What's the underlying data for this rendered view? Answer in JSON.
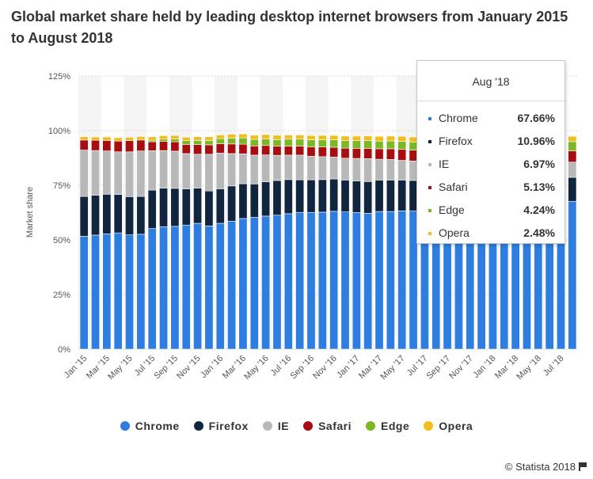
{
  "title": "Global market share held by leading desktop internet browsers from January 2015 to August 2018",
  "credit": "© Statista 2018",
  "tooltip": {
    "header": "Aug '18",
    "rows": [
      {
        "label": "Chrome",
        "value": "67.66%",
        "color": "#2e7de0"
      },
      {
        "label": "Firefox",
        "value": "10.96%",
        "color": "#12253f"
      },
      {
        "label": "IE",
        "value": "6.97%",
        "color": "#b8b8b8"
      },
      {
        "label": "Safari",
        "value": "5.13%",
        "color": "#a80e11"
      },
      {
        "label": "Edge",
        "value": "4.24%",
        "color": "#7cb825"
      },
      {
        "label": "Opera",
        "value": "2.48%",
        "color": "#f0be1e"
      }
    ]
  },
  "chart_data": {
    "type": "bar",
    "stacked": true,
    "title": "Global market share held by leading desktop internet browsers from January 2015 to August 2018",
    "ylabel": "Market share",
    "ylim": [
      0,
      125
    ],
    "yticks": [
      "0%",
      "25%",
      "50%",
      "75%",
      "100%",
      "125%"
    ],
    "ytick_values": [
      0,
      25,
      50,
      75,
      100,
      125
    ],
    "grid": true,
    "legend_position": "bottom",
    "categories": [
      "Jan '15",
      "Feb '15",
      "Mar '15",
      "Apr '15",
      "May '15",
      "Jun '15",
      "Jul '15",
      "Aug '15",
      "Sep '15",
      "Oct '15",
      "Nov '15",
      "Dec '15",
      "Jan '16",
      "Feb '16",
      "Mar '16",
      "Apr '16",
      "May '16",
      "Jun '16",
      "Jul '16",
      "Aug '16",
      "Sep '16",
      "Oct '16",
      "Nov '16",
      "Dec '16",
      "Jan '17",
      "Feb '17",
      "Mar '17",
      "Apr '17",
      "May '17",
      "Jun '17",
      "Jul '17",
      "Aug '17",
      "Sep '17",
      "Oct '17",
      "Nov '17",
      "Dec '17",
      "Jan '18",
      "Feb '18",
      "Mar '18",
      "Apr '18",
      "May '18",
      "Jun '18",
      "Jul '18",
      "Aug '18"
    ],
    "xtick_labels": [
      "Jan '15",
      "Mar '15",
      "May '15",
      "Jul '15",
      "Sep '15",
      "Nov '15",
      "Jan '16",
      "Mar '16",
      "May '16",
      "Jul '16",
      "Sep '16",
      "Nov '16",
      "Jan '17",
      "Mar '17",
      "May '17",
      "Jul '17",
      "Sep '17",
      "Nov '17",
      "Jan '18",
      "Mar '18",
      "May '18",
      "Jul '18"
    ],
    "series": [
      {
        "name": "Chrome",
        "color": "#2e7de0",
        "values": [
          51.7,
          52.2,
          52.8,
          53.2,
          52.3,
          52.6,
          55.2,
          56.0,
          56.2,
          56.8,
          57.6,
          56.4,
          57.6,
          58.6,
          59.8,
          60.3,
          60.9,
          61.3,
          62.0,
          62.6,
          62.6,
          62.7,
          63.1,
          62.8,
          62.5,
          62.2,
          63.0,
          63.0,
          63.3,
          63.2,
          63.0,
          63.2,
          63.4,
          64.0,
          64.3,
          64.6,
          65.0,
          65.3,
          65.8,
          66.3,
          66.6,
          67.0,
          67.3,
          67.66
        ]
      },
      {
        "name": "Firefox",
        "color": "#12253f",
        "values": [
          18.2,
          18.2,
          18.1,
          17.6,
          17.5,
          17.3,
          17.6,
          17.7,
          17.4,
          16.5,
          16.1,
          16.0,
          15.8,
          16.1,
          15.9,
          15.3,
          15.7,
          15.9,
          15.6,
          14.9,
          14.9,
          14.9,
          14.8,
          14.6,
          14.5,
          14.5,
          14.4,
          14.4,
          14.1,
          14.0,
          13.5,
          13.0,
          12.5,
          12.4,
          12.1,
          11.9,
          11.7,
          11.6,
          11.4,
          11.3,
          11.2,
          11.1,
          11.0,
          10.96
        ]
      },
      {
        "name": "IE",
        "color": "#b8b8b8",
        "values": [
          21.2,
          20.5,
          19.8,
          19.5,
          20.5,
          20.8,
          18.0,
          17.2,
          17.0,
          16.2,
          15.5,
          16.8,
          16.3,
          14.8,
          13.7,
          13.2,
          12.3,
          11.5,
          11.2,
          11.3,
          10.8,
          10.5,
          10.0,
          10.0,
          10.3,
          10.5,
          9.5,
          9.4,
          9.0,
          8.9,
          8.7,
          8.6,
          8.4,
          8.2,
          8.0,
          7.9,
          7.8,
          7.6,
          7.4,
          7.3,
          7.2,
          7.1,
          7.0,
          6.97
        ]
      },
      {
        "name": "Safari",
        "color": "#a80e11",
        "values": [
          4.6,
          4.7,
          4.8,
          4.9,
          5.1,
          5.0,
          4.1,
          4.2,
          4.3,
          4.2,
          4.4,
          4.3,
          4.3,
          4.4,
          4.4,
          4.2,
          4.3,
          4.2,
          4.1,
          4.1,
          4.2,
          4.4,
          4.5,
          4.6,
          4.6,
          4.7,
          4.8,
          4.9,
          5.0,
          5.0,
          5.0,
          5.1,
          5.2,
          5.1,
          5.2,
          5.2,
          5.1,
          5.1,
          5.2,
          5.1,
          5.2,
          5.1,
          5.1,
          5.13
        ]
      },
      {
        "name": "Edge",
        "color": "#7cb825",
        "values": [
          0,
          0,
          0,
          0,
          0,
          0,
          0.7,
          1.0,
          1.3,
          1.7,
          1.9,
          2.0,
          2.3,
          2.7,
          2.9,
          3.0,
          3.0,
          3.0,
          3.2,
          3.2,
          3.3,
          3.3,
          3.4,
          3.4,
          3.5,
          3.5,
          3.5,
          3.6,
          3.7,
          3.7,
          3.8,
          3.8,
          3.9,
          3.9,
          4.0,
          4.0,
          4.0,
          4.1,
          4.1,
          4.1,
          4.2,
          4.2,
          4.2,
          4.24
        ]
      },
      {
        "name": "Opera",
        "color": "#f0be1e",
        "values": [
          1.5,
          1.5,
          1.6,
          1.6,
          1.6,
          1.6,
          1.6,
          1.6,
          1.6,
          1.6,
          1.7,
          1.7,
          1.7,
          1.8,
          1.8,
          1.9,
          2.0,
          2.0,
          1.9,
          1.9,
          2.0,
          2.0,
          2.0,
          2.1,
          2.1,
          2.2,
          2.2,
          2.2,
          2.3,
          2.3,
          2.3,
          2.3,
          2.3,
          2.3,
          2.4,
          2.4,
          2.4,
          2.4,
          2.4,
          2.4,
          2.5,
          2.5,
          2.5,
          2.48
        ]
      }
    ]
  }
}
